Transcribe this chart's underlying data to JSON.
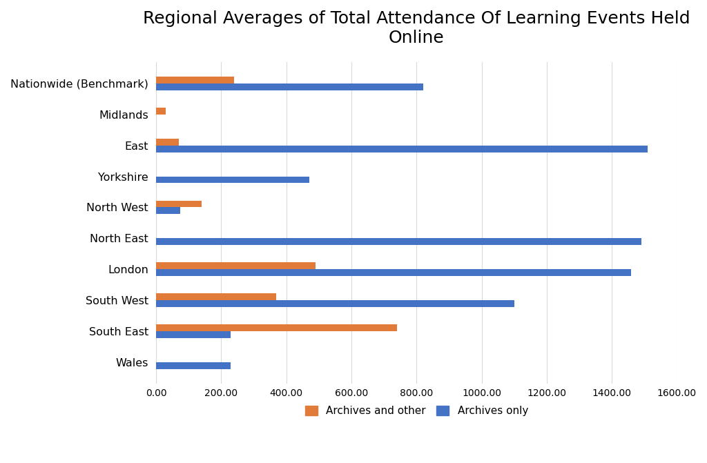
{
  "title": "Regional Averages of Total Attendance Of Learning Events Held\nOnline",
  "categories": [
    "Nationwide (Benchmark)",
    "Midlands",
    "East",
    "Yorkshire",
    "North West",
    "North East",
    "London",
    "South West",
    "South East",
    "Wales"
  ],
  "archives_and_other": [
    240,
    30,
    70,
    0,
    140,
    0,
    490,
    370,
    740,
    0
  ],
  "archives_only": [
    820,
    0,
    1510,
    470,
    75,
    1490,
    1460,
    1100,
    230,
    230
  ],
  "color_archives_and_other": "#E07B39",
  "color_archives_only": "#4472C4",
  "xlim": [
    0,
    1600
  ],
  "xtick_values": [
    0,
    200,
    400,
    600,
    800,
    1000,
    1200,
    1400,
    1600
  ],
  "xtick_labels": [
    "0.00",
    "200.00",
    "400.00",
    "600.00",
    "800.00",
    "1000.00",
    "1200.00",
    "1400.00",
    "1600.00"
  ],
  "background_color": "#FFFFFF",
  "bar_height": 0.22,
  "title_fontsize": 18,
  "legend_labels": [
    "Archives and other",
    "Archives only"
  ],
  "grid_color": "#D9D9D9"
}
